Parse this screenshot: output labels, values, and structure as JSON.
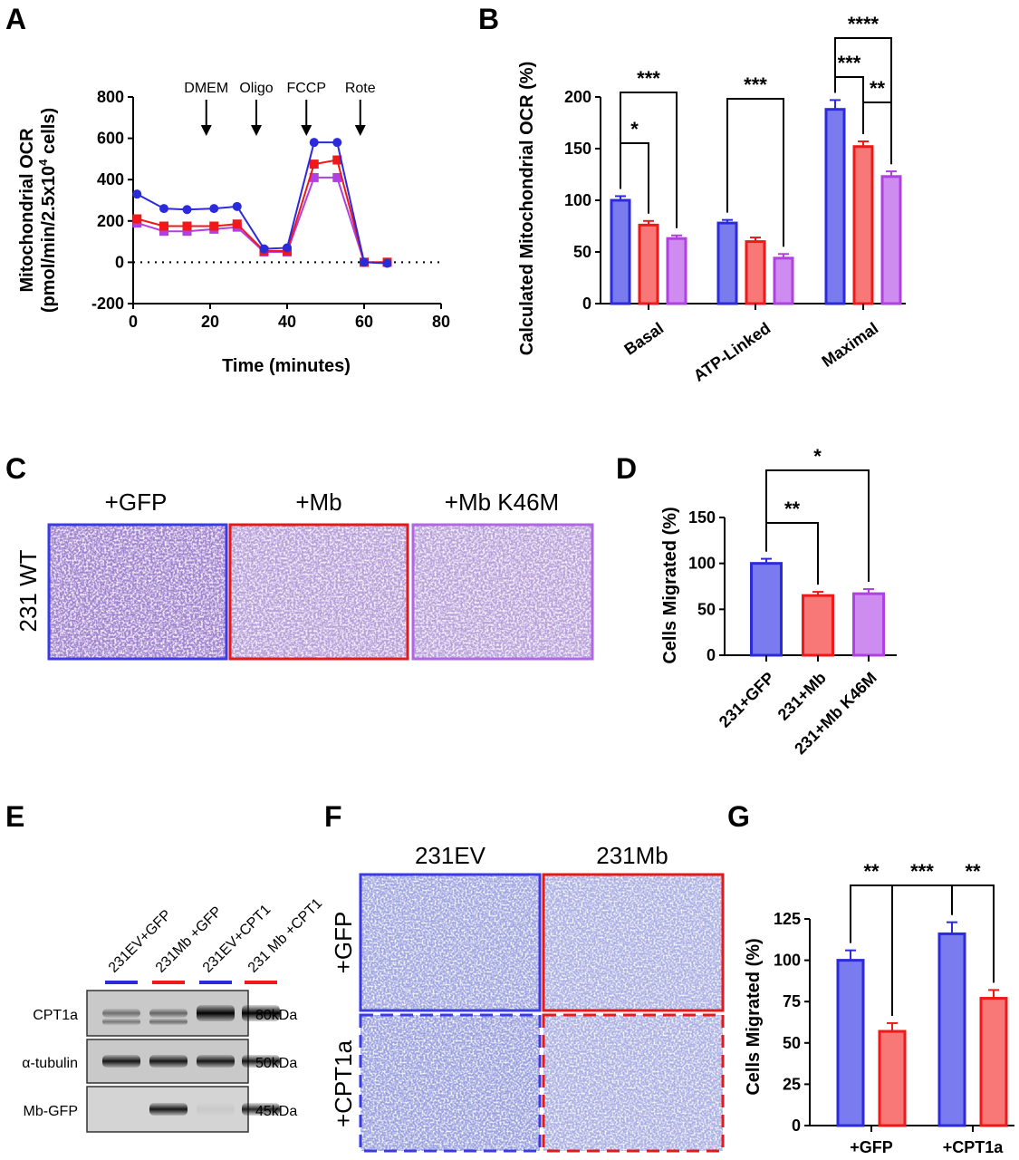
{
  "colors": {
    "blue": "#2b2bdc",
    "blue_fill": "#7b7bf0",
    "red": "#f01818",
    "red_fill": "#f87878",
    "purple": "#b040e0",
    "purple_fill": "#cf8cf0",
    "gray": "#777777"
  },
  "panels": {
    "A": {
      "label": "A"
    },
    "B": {
      "label": "B"
    },
    "C": {
      "label": "C"
    },
    "D": {
      "label": "D"
    },
    "E": {
      "label": "E"
    },
    "F": {
      "label": "F"
    },
    "G": {
      "label": "G"
    }
  },
  "panelA": {
    "ylabel_line1": "Mitochondrial OCR",
    "ylabel_line2": "(pmol/min/2.5x10",
    "ylabel_sup": "4",
    "ylabel_tail": " cells)",
    "injections": [
      {
        "label": "DMEM",
        "time": 19
      },
      {
        "label": "Oligo",
        "time": 32
      },
      {
        "label": "FCCP",
        "time": 45
      },
      {
        "label": "Rote",
        "time": 59
      }
    ]
  },
  "panelC": {
    "row_label": "231 WT",
    "columns": [
      "+GFP",
      "+Mb",
      "+Mb K46M"
    ]
  },
  "panelE": {
    "lanes": [
      "231EV+GFP",
      "231Mb +GFP",
      "231EV+CPT1",
      "231 Mb +CPT1"
    ],
    "lane_colors": [
      "blue",
      "red",
      "blue",
      "red"
    ],
    "bands": [
      {
        "label": "CPT1a",
        "size": "80kDa",
        "intensities": [
          0.45,
          0.5,
          1.0,
          1.0
        ]
      },
      {
        "label": "α-tubulin",
        "size": "50kDa",
        "intensities": [
          0.9,
          0.9,
          0.9,
          0.9
        ]
      },
      {
        "label": "Mb-GFP",
        "size": "45kDa",
        "intensities": [
          0.0,
          0.9,
          0.05,
          0.85
        ]
      }
    ]
  },
  "panelF": {
    "columns": [
      "231EV",
      "231Mb"
    ],
    "rows": [
      "+GFP",
      "+CPT1a"
    ]
  },
  "chart_data": [
    {
      "id": "A",
      "type": "line",
      "title": "",
      "xlabel": "Time (minutes)",
      "ylabel": "Mitochondrial OCR (pmol/min/2.5x10^4 cells)",
      "xlim": [
        0,
        80
      ],
      "ylim": [
        -200,
        800
      ],
      "xticks": [
        0,
        20,
        40,
        60,
        80
      ],
      "yticks": [
        -200,
        0,
        200,
        400,
        600,
        800
      ],
      "zero_line": "dotted",
      "series": [
        {
          "name": "231+GFP",
          "color": "blue",
          "marker": "circle",
          "x": [
            1,
            8,
            14,
            21,
            27,
            34,
            40,
            47,
            53,
            60,
            66
          ],
          "y": [
            330,
            260,
            255,
            260,
            270,
            65,
            70,
            580,
            580,
            0,
            -5
          ]
        },
        {
          "name": "231+Mb",
          "color": "red",
          "marker": "square",
          "x": [
            1,
            8,
            14,
            21,
            27,
            34,
            40,
            47,
            53,
            60,
            66
          ],
          "y": [
            210,
            175,
            175,
            175,
            185,
            55,
            55,
            475,
            495,
            0,
            0
          ]
        },
        {
          "name": "231+Mb K46M",
          "color": "purple",
          "marker": "square",
          "x": [
            1,
            8,
            14,
            21,
            27,
            34,
            40,
            47,
            53,
            60,
            66
          ],
          "y": [
            190,
            150,
            150,
            160,
            170,
            50,
            50,
            410,
            410,
            0,
            0
          ]
        }
      ]
    },
    {
      "id": "B",
      "type": "bar",
      "ylabel": "Calculated Mitochondrial OCR (%)",
      "ylim": [
        0,
        200
      ],
      "yticks": [
        0,
        50,
        100,
        150,
        200
      ],
      "categories": [
        "Basal",
        "ATP-Linked",
        "Maximal"
      ],
      "series": [
        {
          "name": "231+GFP",
          "color": "blue",
          "values": [
            100,
            78,
            188
          ],
          "errors": [
            4,
            3,
            9
          ]
        },
        {
          "name": "231+Mb",
          "color": "red",
          "values": [
            76,
            60,
            152
          ],
          "errors": [
            4,
            4,
            5
          ]
        },
        {
          "name": "231+Mb K46M",
          "color": "purple",
          "values": [
            63,
            44,
            123
          ],
          "errors": [
            3,
            4,
            5
          ]
        }
      ],
      "significance": [
        {
          "cat": 0,
          "from": 0,
          "to": 1,
          "label": "*"
        },
        {
          "cat": 0,
          "from": 0,
          "to": 2,
          "label": "***"
        },
        {
          "cat": 1,
          "from": 0,
          "to": 2,
          "label": "***"
        },
        {
          "cat": 2,
          "from": 0,
          "to": 1,
          "label": "***"
        },
        {
          "cat": 2,
          "from": 1,
          "to": 2,
          "label": "**"
        },
        {
          "cat": 2,
          "from": 0,
          "to": 2,
          "label": "****"
        }
      ]
    },
    {
      "id": "D",
      "type": "bar",
      "ylabel": "Cells Migrated (%)",
      "ylim": [
        0,
        150
      ],
      "yticks": [
        0,
        50,
        100,
        150
      ],
      "categories": [
        "231+GFP",
        "231+Mb",
        "231+Mb K46M"
      ],
      "colors": [
        "blue",
        "red",
        "purple"
      ],
      "values": [
        100,
        65,
        67
      ],
      "errors": [
        5,
        4,
        5
      ],
      "significance": [
        {
          "from": 0,
          "to": 1,
          "label": "**"
        },
        {
          "from": 0,
          "to": 2,
          "label": "*"
        }
      ]
    },
    {
      "id": "G",
      "type": "bar",
      "ylabel": "Cells Migrated (%)",
      "ylim": [
        0,
        125
      ],
      "yticks": [
        0,
        25,
        50,
        75,
        100,
        125
      ],
      "categories": [
        "+GFP",
        "+CPT1a"
      ],
      "series": [
        {
          "name": "231EV",
          "color": "blue",
          "values": [
            100,
            116
          ],
          "errors": [
            6,
            7
          ]
        },
        {
          "name": "231Mb",
          "color": "red",
          "values": [
            57,
            77
          ],
          "errors": [
            5,
            5
          ]
        }
      ],
      "significance": [
        {
          "label": "**",
          "a": [
            0,
            0
          ],
          "b": [
            0,
            1
          ]
        },
        {
          "label": "***",
          "a": [
            0,
            1
          ],
          "b": [
            1,
            0
          ]
        },
        {
          "label": "**",
          "a": [
            1,
            0
          ],
          "b": [
            1,
            1
          ]
        }
      ]
    }
  ]
}
